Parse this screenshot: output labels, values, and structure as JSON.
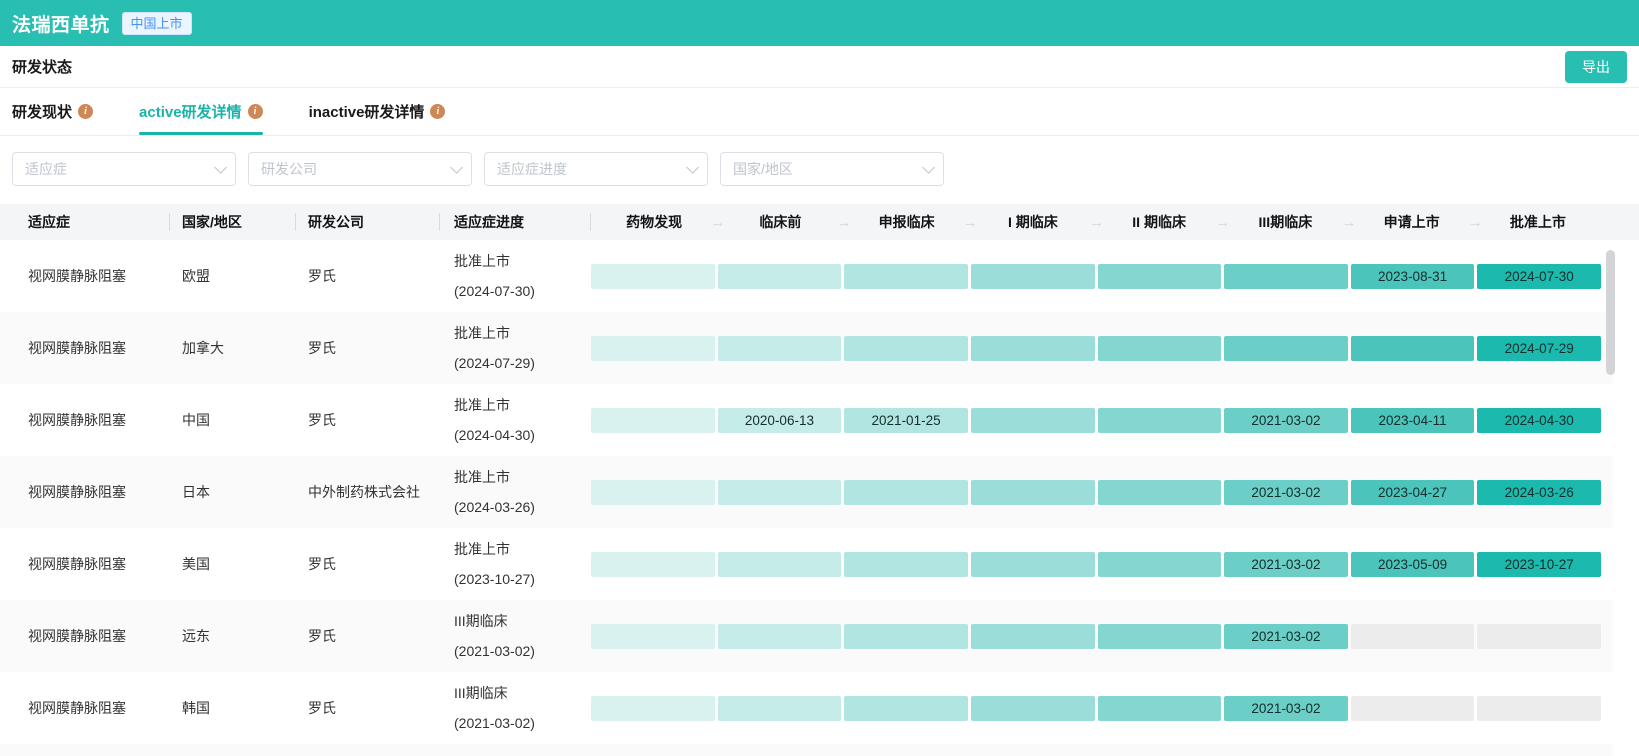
{
  "header": {
    "title": "法瑞西单抗",
    "badge": "中国上市"
  },
  "toolbar": {
    "section_title": "研发状态",
    "export_label": "导出"
  },
  "tabs": [
    {
      "label": "研发现状"
    },
    {
      "label": "active研发详情"
    },
    {
      "label": "inactive研发详情"
    }
  ],
  "active_tab_index": 1,
  "filters": [
    {
      "placeholder": "适应症"
    },
    {
      "placeholder": "研发公司"
    },
    {
      "placeholder": "适应症进度"
    },
    {
      "placeholder": "国家/地区"
    }
  ],
  "table": {
    "columns": [
      "适应症",
      "国家/地区",
      "研发公司",
      "适应症进度"
    ],
    "stages": [
      "药物发现",
      "临床前",
      "申报临床",
      "I 期临床",
      "II 期临床",
      "III期临床",
      "申请上市",
      "批准上市"
    ],
    "rows": [
      {
        "indication": "视网膜静脉阻塞",
        "region": "欧盟",
        "company": "罗氏",
        "status": "批准上市",
        "status_date": "(2024-07-30)",
        "stage_cells": [
          {
            "state": "reached",
            "date": ""
          },
          {
            "state": "reached",
            "date": ""
          },
          {
            "state": "reached",
            "date": ""
          },
          {
            "state": "reached",
            "date": ""
          },
          {
            "state": "reached",
            "date": ""
          },
          {
            "state": "reached",
            "date": ""
          },
          {
            "state": "reached",
            "date": "2023-08-31"
          },
          {
            "state": "reached",
            "date": "2024-07-30"
          }
        ]
      },
      {
        "indication": "视网膜静脉阻塞",
        "region": "加拿大",
        "company": "罗氏",
        "status": "批准上市",
        "status_date": "(2024-07-29)",
        "stage_cells": [
          {
            "state": "reached",
            "date": ""
          },
          {
            "state": "reached",
            "date": ""
          },
          {
            "state": "reached",
            "date": ""
          },
          {
            "state": "reached",
            "date": ""
          },
          {
            "state": "reached",
            "date": ""
          },
          {
            "state": "reached",
            "date": ""
          },
          {
            "state": "reached",
            "date": ""
          },
          {
            "state": "reached",
            "date": "2024-07-29"
          }
        ]
      },
      {
        "indication": "视网膜静脉阻塞",
        "region": "中国",
        "company": "罗氏",
        "status": "批准上市",
        "status_date": "(2024-04-30)",
        "stage_cells": [
          {
            "state": "reached",
            "date": ""
          },
          {
            "state": "reached",
            "date": "2020-06-13"
          },
          {
            "state": "reached",
            "date": "2021-01-25"
          },
          {
            "state": "reached",
            "date": ""
          },
          {
            "state": "reached",
            "date": ""
          },
          {
            "state": "reached",
            "date": "2021-03-02"
          },
          {
            "state": "reached",
            "date": "2023-04-11"
          },
          {
            "state": "reached",
            "date": "2024-04-30"
          }
        ]
      },
      {
        "indication": "视网膜静脉阻塞",
        "region": "日本",
        "company": "中外制药株式会社",
        "status": "批准上市",
        "status_date": "(2024-03-26)",
        "stage_cells": [
          {
            "state": "reached",
            "date": ""
          },
          {
            "state": "reached",
            "date": ""
          },
          {
            "state": "reached",
            "date": ""
          },
          {
            "state": "reached",
            "date": ""
          },
          {
            "state": "reached",
            "date": ""
          },
          {
            "state": "reached",
            "date": "2021-03-02"
          },
          {
            "state": "reached",
            "date": "2023-04-27"
          },
          {
            "state": "reached",
            "date": "2024-03-26"
          }
        ]
      },
      {
        "indication": "视网膜静脉阻塞",
        "region": "美国",
        "company": "罗氏",
        "status": "批准上市",
        "status_date": "(2023-10-27)",
        "stage_cells": [
          {
            "state": "reached",
            "date": ""
          },
          {
            "state": "reached",
            "date": ""
          },
          {
            "state": "reached",
            "date": ""
          },
          {
            "state": "reached",
            "date": ""
          },
          {
            "state": "reached",
            "date": ""
          },
          {
            "state": "reached",
            "date": "2021-03-02"
          },
          {
            "state": "reached",
            "date": "2023-05-09"
          },
          {
            "state": "reached",
            "date": "2023-10-27"
          }
        ]
      },
      {
        "indication": "视网膜静脉阻塞",
        "region": "远东",
        "company": "罗氏",
        "status": "III期临床",
        "status_date": "(2021-03-02)",
        "stage_cells": [
          {
            "state": "reached",
            "date": ""
          },
          {
            "state": "reached",
            "date": ""
          },
          {
            "state": "reached",
            "date": ""
          },
          {
            "state": "reached",
            "date": ""
          },
          {
            "state": "reached",
            "date": ""
          },
          {
            "state": "reached",
            "date": "2021-03-02"
          },
          {
            "state": "pending",
            "date": ""
          },
          {
            "state": "pending",
            "date": ""
          }
        ]
      },
      {
        "indication": "视网膜静脉阻塞",
        "region": "韩国",
        "company": "罗氏",
        "status": "III期临床",
        "status_date": "(2021-03-02)",
        "stage_cells": [
          {
            "state": "reached",
            "date": ""
          },
          {
            "state": "reached",
            "date": ""
          },
          {
            "state": "reached",
            "date": ""
          },
          {
            "state": "reached",
            "date": ""
          },
          {
            "state": "reached",
            "date": ""
          },
          {
            "state": "reached",
            "date": "2021-03-02"
          },
          {
            "state": "pending",
            "date": ""
          },
          {
            "state": "pending",
            "date": ""
          }
        ]
      }
    ]
  },
  "colors": {
    "brand_teal": "#29beb2",
    "active_tab_teal": "#1bb3a8",
    "badge_blue": "#4a90f5",
    "info_icon_orange": "#ce8757",
    "stage_gradient": [
      "#d9f2ef",
      "#c5ece8",
      "#b0e5e1",
      "#9bded9",
      "#84d6d0",
      "#6bcec7",
      "#4bc4bc",
      "#1cb9ae"
    ],
    "pending_cell": "#ececec",
    "header_bg": "#f4f5f7",
    "row_alt_bg": "#fafafa"
  }
}
